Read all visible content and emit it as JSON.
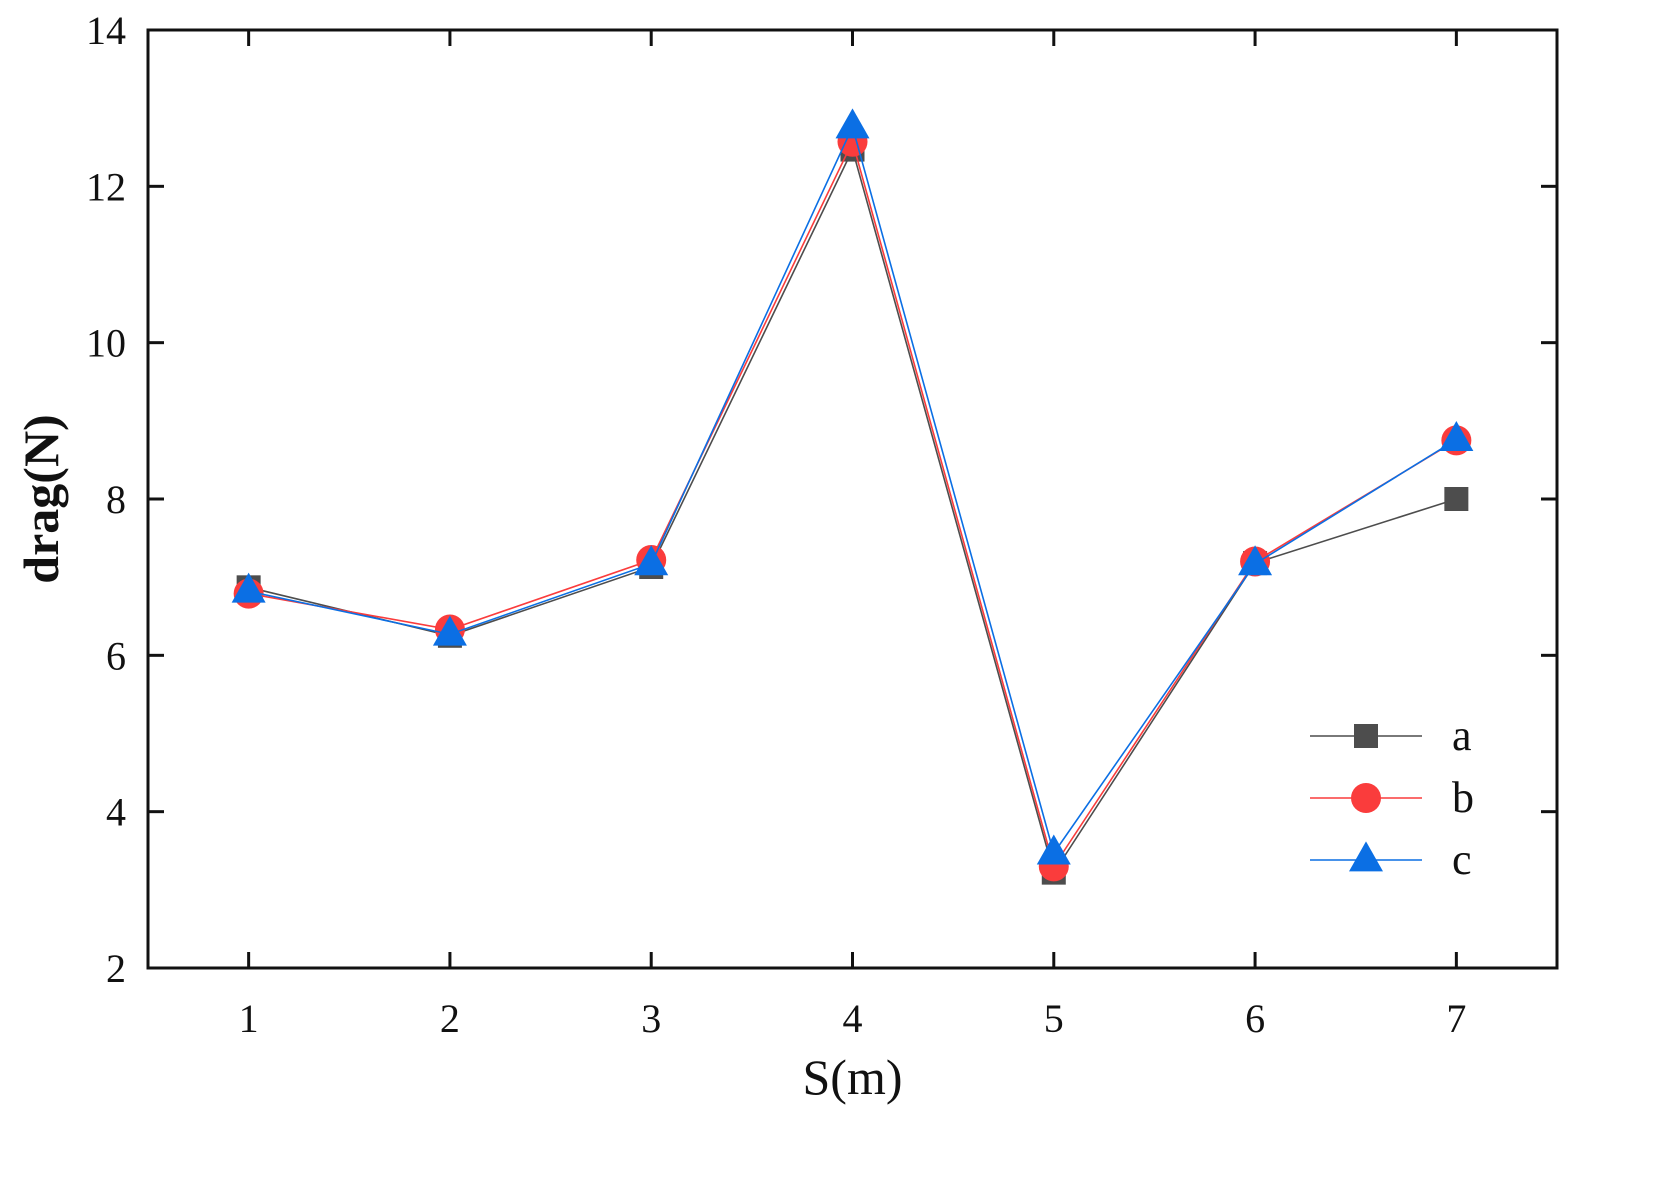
{
  "chart_data": {
    "type": "line",
    "xlabel": "S(m)",
    "ylabel": "drag(N)",
    "x": [
      1,
      2,
      3,
      4,
      5,
      6,
      7
    ],
    "xlim": [
      0.5,
      7.5
    ],
    "ylim": [
      2,
      14
    ],
    "x_ticks": [
      "1",
      "2",
      "3",
      "4",
      "5",
      "6",
      "7"
    ],
    "y_ticks": [
      "2",
      "4",
      "6",
      "8",
      "10",
      "12",
      "14"
    ],
    "grid": false,
    "legend_position": "bottom-right",
    "series": [
      {
        "name": "a",
        "marker": "square",
        "color": "#4d4d4d",
        "values": [
          6.87,
          6.25,
          7.13,
          12.47,
          3.22,
          7.18,
          8.0
        ]
      },
      {
        "name": "b",
        "marker": "circle",
        "color": "#fa3c3c",
        "values": [
          6.79,
          6.33,
          7.22,
          12.57,
          3.3,
          7.2,
          8.75
        ]
      },
      {
        "name": "c",
        "marker": "triangle",
        "color": "#0b6fe4",
        "values": [
          6.82,
          6.27,
          7.17,
          12.76,
          3.47,
          7.17,
          8.76
        ]
      }
    ]
  }
}
